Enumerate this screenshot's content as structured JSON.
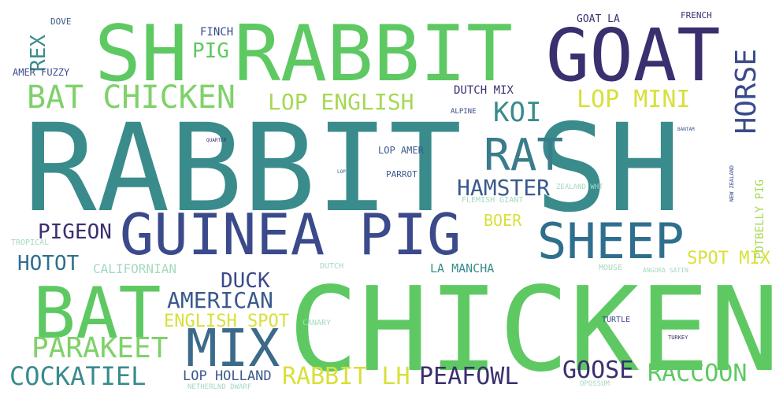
{
  "words": [
    {
      "name": "word-rabbit-sh",
      "text": "RABBIT SH",
      "color": "#3a8b8c"
    },
    {
      "name": "word-chicken",
      "text": "CHICKEN",
      "color": "#5ec962"
    },
    {
      "name": "word-sh-rabbit",
      "text": "SH RABBIT",
      "color": "#5ec962"
    },
    {
      "name": "word-goat",
      "text": "GOAT",
      "color": "#3b2f6f"
    },
    {
      "name": "word-guinea-pig",
      "text": "GUINEA PIG",
      "color": "#3b4a8b"
    },
    {
      "name": "word-bat",
      "text": "BAT",
      "color": "#5ec962"
    },
    {
      "name": "word-mix",
      "text": "MIX",
      "color": "#3b6a8a"
    },
    {
      "name": "word-sheep",
      "text": "SHEEP",
      "color": "#2f6f8e"
    },
    {
      "name": "word-rat",
      "text": "RAT",
      "color": "#3a7c8c"
    },
    {
      "name": "word-bat-chicken",
      "text": "BAT CHICKEN",
      "color": "#7fd16a"
    },
    {
      "name": "word-horse",
      "text": "HORSE",
      "color": "#3b4a8b"
    },
    {
      "name": "word-lop-mini",
      "text": "LOP MINI",
      "color": "#d8e03a"
    },
    {
      "name": "word-lop-english",
      "text": "LOP ENGLISH",
      "color": "#a6d854"
    },
    {
      "name": "word-parakeet",
      "text": "PARAKEET",
      "color": "#7fd16a"
    },
    {
      "name": "word-american",
      "text": "AMERICAN",
      "color": "#3b5a8b"
    },
    {
      "name": "word-hamster",
      "text": "HAMSTER",
      "color": "#3b5a8b"
    },
    {
      "name": "word-koi",
      "text": "KOI",
      "color": "#3a8b8c"
    },
    {
      "name": "word-cockatiel",
      "text": "COCKATIEL",
      "color": "#3a8b8c"
    },
    {
      "name": "word-rabbit-lh",
      "text": "RABBIT LH",
      "color": "#d8e03a"
    },
    {
      "name": "word-peafowl",
      "text": "PEAFOWL",
      "color": "#3b2f6f"
    },
    {
      "name": "word-goose",
      "text": "GOOSE",
      "color": "#3b2f6f"
    },
    {
      "name": "word-raccoon",
      "text": "RACCOON",
      "color": "#5ec962"
    },
    {
      "name": "word-pigeon",
      "text": "PIGEON",
      "color": "#3b2f6f"
    },
    {
      "name": "word-hotot",
      "text": "HOTOT",
      "color": "#2f6f8e"
    },
    {
      "name": "word-duck",
      "text": "DUCK",
      "color": "#3b4a8b"
    },
    {
      "name": "word-english-spot",
      "text": "ENGLISH SPOT",
      "color": "#d8e03a"
    },
    {
      "name": "word-spot-mix",
      "text": "SPOT MIX",
      "color": "#d8e03a"
    },
    {
      "name": "word-rex",
      "text": "REX",
      "color": "#3a8b8c"
    },
    {
      "name": "word-pig",
      "text": "PIG",
      "color": "#5ec962"
    },
    {
      "name": "word-boer",
      "text": "BOER",
      "color": "#d8e03a"
    },
    {
      "name": "word-lop-holland",
      "text": "LOP HOLLAND",
      "color": "#3b5a8b"
    },
    {
      "name": "word-californian",
      "text": "CALIFORNIAN",
      "color": "#a6d8c0"
    },
    {
      "name": "word-potbelly-pig",
      "text": "POTBELLY PIG",
      "color": "#a6d854"
    },
    {
      "name": "word-la-mancha",
      "text": "LA MANCHA",
      "color": "#3a8b8c"
    },
    {
      "name": "word-dutch-mix",
      "text": "DUTCH MIX",
      "color": "#3b2f6f"
    },
    {
      "name": "word-finch",
      "text": "FINCH",
      "color": "#3b4a8b"
    },
    {
      "name": "word-goat-la",
      "text": "GOAT LA",
      "color": "#3b2f6f"
    },
    {
      "name": "word-amer-fuzzy",
      "text": "AMER FUZZY",
      "color": "#3b4a8b"
    },
    {
      "name": "word-dove",
      "text": "DOVE",
      "color": "#3b5a8b"
    },
    {
      "name": "word-french",
      "text": "FRENCH",
      "color": "#3b2f6f"
    },
    {
      "name": "word-lop-amer",
      "text": "LOP AMER",
      "color": "#3b5a8b"
    },
    {
      "name": "word-parrot",
      "text": "PARROT",
      "color": "#3b5a8b"
    },
    {
      "name": "word-flemish-giant",
      "text": "FLEMISH GIANT",
      "color": "#a6d8c0"
    },
    {
      "name": "word-zealand-wht",
      "text": "ZEALAND WHT",
      "color": "#a6d8c0"
    },
    {
      "name": "word-alpine",
      "text": "ALPINE",
      "color": "#3b4a8b"
    },
    {
      "name": "word-tropical",
      "text": "TROPICAL",
      "color": "#a6d8c0"
    },
    {
      "name": "word-dutch",
      "text": "DUTCH",
      "color": "#a6d8c0"
    },
    {
      "name": "word-mouse",
      "text": "MOUSE",
      "color": "#a6d8c0"
    },
    {
      "name": "word-angora-satin",
      "text": "ANGORA SATIN",
      "color": "#a6d8c0"
    },
    {
      "name": "word-canary",
      "text": "CANARY",
      "color": "#a6d8c0"
    },
    {
      "name": "word-turtle",
      "text": "TURTLE",
      "color": "#3b4a8b"
    },
    {
      "name": "word-turkey",
      "text": "TURKEY",
      "color": "#3b2f6f"
    },
    {
      "name": "word-netherlnd-dwarf",
      "text": "NETHERLND DWARF",
      "color": "#a6d8c0"
    },
    {
      "name": "word-opossum",
      "text": "OPOSSUM",
      "color": "#a6d8c0"
    },
    {
      "name": "word-new-zealand",
      "text": "NEW ZEALAND",
      "color": "#3b4a8b"
    },
    {
      "name": "word-lop",
      "text": "LOP",
      "color": "#3b5a8b"
    },
    {
      "name": "word-quarter",
      "text": "QUARTER",
      "color": "#3b2f6f"
    },
    {
      "name": "word-bantam",
      "text": "BANTAM",
      "color": "#3b5a8b"
    }
  ]
}
